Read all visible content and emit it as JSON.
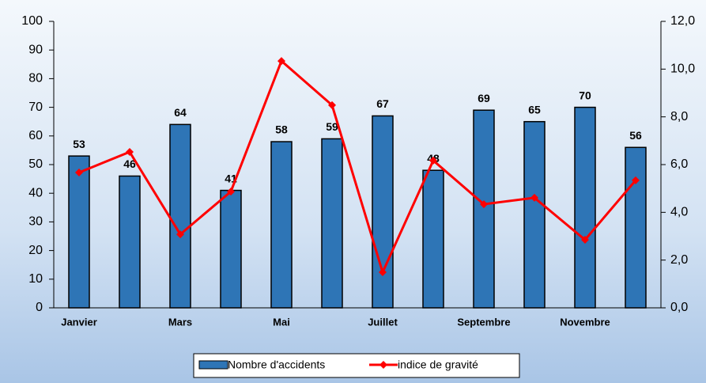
{
  "chart_data": {
    "type": "bar-line",
    "categories": [
      "Janvier",
      null,
      "Mars",
      null,
      "Mai",
      null,
      "Juillet",
      null,
      "Septembre",
      null,
      "Novembre",
      null
    ],
    "series": [
      {
        "name": "Nombre d'accidents",
        "type": "bar",
        "color": "#2e75b6",
        "values": [
          53,
          46,
          64,
          41,
          58,
          59,
          67,
          48,
          69,
          65,
          70,
          56
        ]
      },
      {
        "name": "indice de gravité",
        "type": "line",
        "color": "#ff0000",
        "axis": "y2",
        "values": [
          5.67,
          6.53,
          3.08,
          4.87,
          10.34,
          8.49,
          1.49,
          6.17,
          4.34,
          4.61,
          2.85,
          5.34
        ]
      }
    ],
    "ylim": [
      0,
      100
    ],
    "yticks": [
      0,
      10,
      20,
      30,
      40,
      50,
      60,
      70,
      80,
      90,
      100
    ],
    "y2lim": [
      0,
      12
    ],
    "y2ticks": [
      {
        "value": 0,
        "label": "0,0"
      },
      {
        "value": 2,
        "label": "2,0"
      },
      {
        "value": 4,
        "label": "4,0"
      },
      {
        "value": 6,
        "label": "6,0"
      },
      {
        "value": 8,
        "label": "8,0"
      },
      {
        "value": 10,
        "label": "10,0"
      },
      {
        "value": 12,
        "label": "12,0"
      }
    ],
    "legend": "bottom"
  }
}
